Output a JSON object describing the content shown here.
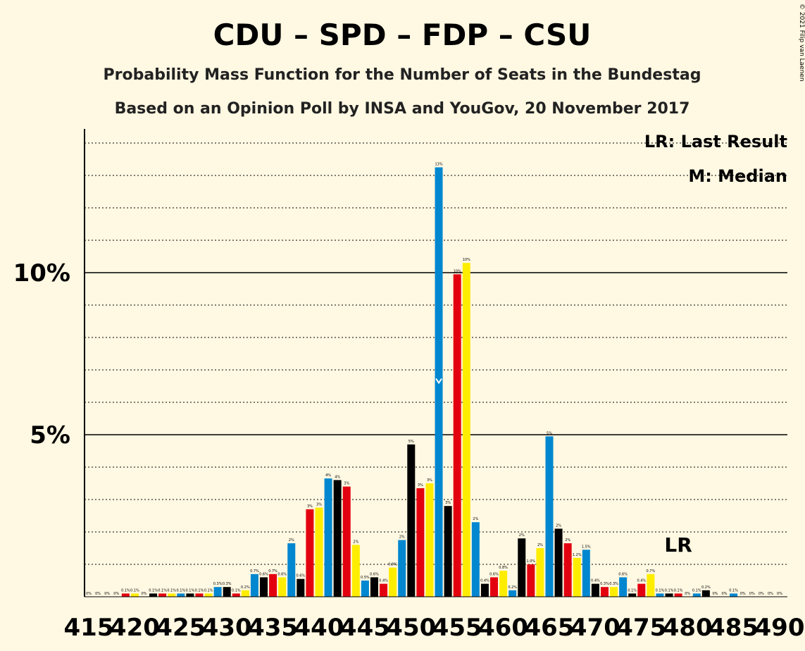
{
  "chart_data": {
    "type": "bar",
    "title": "CDU – SPD – FDP – CSU",
    "subtitle": "Probability Mass Function for the Number of Seats in the Bundestag",
    "subtitle2": "Based on an Opinion Poll by INSA and YouGov, 20 November 2017",
    "copyright": "© 2021 Filip van Laenen",
    "legend": {
      "last_result": "LR: Last Result",
      "median": "M: Median",
      "placement": "top-right"
    },
    "lr_label": "LR",
    "last_result_seat": 479,
    "median_seat": 453,
    "x_start": 415,
    "x_tick_labels": [
      "415",
      "420",
      "425",
      "430",
      "435",
      "440",
      "445",
      "450",
      "455",
      "460",
      "465",
      "470",
      "475",
      "480",
      "485",
      "490"
    ],
    "y_tick_labels": [
      {
        "value": 5,
        "label": "5%"
      },
      {
        "value": 10,
        "label": "10%"
      }
    ],
    "ylim": [
      0,
      14.4
    ],
    "grid": true,
    "colors": [
      "#E3000F",
      "#FFED00",
      "#0087D0",
      "#000000"
    ],
    "values": [
      0,
      0,
      0,
      0,
      0.1,
      0.1,
      0,
      0.1,
      0.1,
      0.1,
      0.1,
      0.1,
      0.1,
      0.1,
      0.3,
      0.3,
      0.1,
      0.2,
      0.7,
      0.6,
      0.7,
      0.6,
      1.65,
      0.55,
      2.7,
      2.75,
      3.65,
      3.6,
      3.4,
      1.6,
      0.5,
      0.6,
      0.4,
      0.9,
      1.75,
      4.7,
      3.35,
      3.5,
      13.25,
      2.8,
      9.95,
      10.3,
      2.3,
      0.4,
      0.6,
      0.8,
      0.2,
      1.8,
      1.0,
      1.5,
      4.95,
      2.1,
      1.65,
      1.2,
      1.45,
      0.4,
      0.3,
      0.3,
      0.6,
      0.1,
      0.4,
      0.7,
      0.1,
      0.1,
      0.1,
      0,
      0.1,
      0.2,
      0,
      0,
      0.1,
      0,
      0,
      0,
      0,
      0
    ],
    "data_labels": [
      "0%",
      "0%",
      "0%",
      "0%",
      "0.1%",
      "0.1%",
      "0%",
      "0.1%",
      "0.1%",
      "0.1%",
      "0.1%",
      "0.1%",
      "0.1%",
      "0.1%",
      "0.3%",
      "0.3%",
      "0.1%",
      "0.2%",
      "0.7%",
      "0.6%",
      "0.7%",
      "0.6%",
      "2%",
      "0.6%",
      "3%",
      "3%",
      "4%",
      "4%",
      "3%",
      "2%",
      "0.5%",
      "0.6%",
      "0.4%",
      "0.9%",
      "2%",
      "5%",
      "3%",
      "3%",
      "13%",
      "3%",
      "10%",
      "10%",
      "2%",
      "0.4%",
      "0.6%",
      "0.8%",
      "0.2%",
      "2%",
      "1.0%",
      "2%",
      "5%",
      "2%",
      "2%",
      "1.2%",
      "1.5%",
      "0.4%",
      "0.3%",
      "0.3%",
      "0.6%",
      "0.1%",
      "0.4%",
      "0.7%",
      "0.1%",
      "0.1%",
      "0.1%",
      "0%",
      "0.1%",
      "0.2%",
      "0%",
      "0%",
      "0.1%",
      "0%",
      "0%",
      "0%",
      "0%",
      "0%"
    ]
  }
}
